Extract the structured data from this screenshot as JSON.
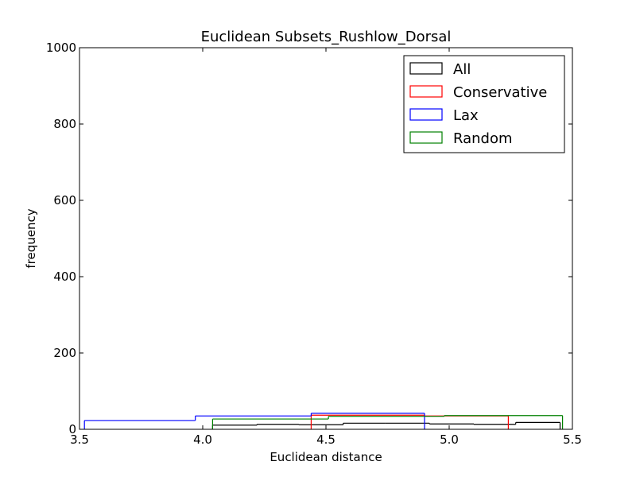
{
  "chart_data": {
    "type": "histogram-step",
    "title": "Euclidean Subsets_Rushlow_Dorsal",
    "xlabel": "Euclidean distance",
    "ylabel": "frequency",
    "xlim": [
      3.5,
      5.5
    ],
    "ylim": [
      0,
      1000
    ],
    "xticks": [
      "3.5",
      "4.0",
      "4.5",
      "5.0",
      "5.5"
    ],
    "yticks": [
      "0",
      "200",
      "400",
      "600",
      "800",
      "1000"
    ],
    "legend": "top-right",
    "grid": false,
    "series": [
      {
        "name": "All",
        "color": "#000000",
        "edges": [
          4.04,
          4.22,
          4.39,
          4.57,
          4.74,
          4.92,
          5.1,
          5.27,
          5.45
        ],
        "counts": [
          11,
          13,
          12,
          16,
          16,
          14,
          13,
          18
        ]
      },
      {
        "name": "Conservative",
        "color": "#ff0000",
        "edges": [
          4.44,
          4.9,
          5.24
        ],
        "counts": [
          37,
          35
        ]
      },
      {
        "name": "Lax",
        "color": "#0000ff",
        "edges": [
          3.52,
          3.97,
          4.44,
          4.9
        ],
        "counts": [
          23,
          35,
          42
        ]
      },
      {
        "name": "Random",
        "color": "#008000",
        "edges": [
          4.04,
          4.51,
          4.98,
          5.46
        ],
        "counts": [
          27,
          34,
          36
        ]
      }
    ]
  }
}
